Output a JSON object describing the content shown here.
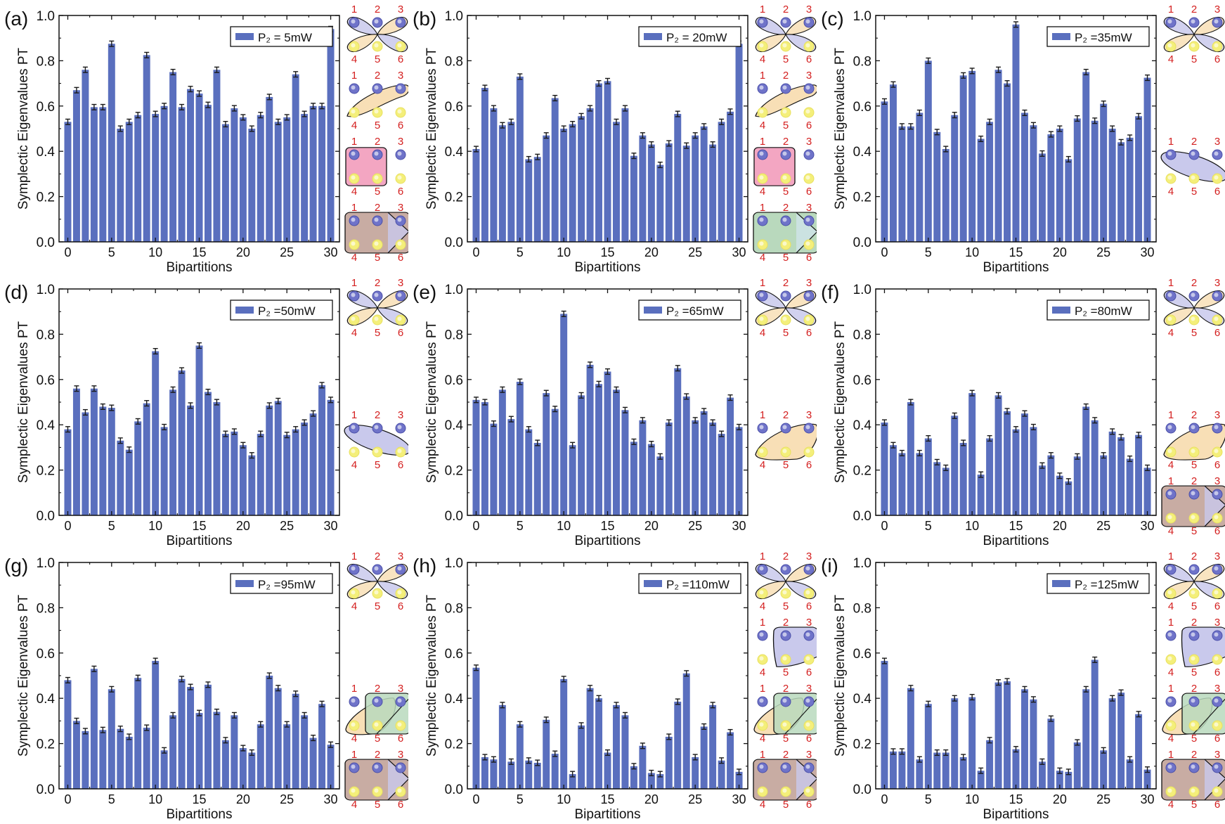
{
  "figure": {
    "node_labels": [
      "1",
      "2",
      "3",
      "4",
      "5",
      "6"
    ],
    "colors": {
      "bar": "#5a6fbe",
      "error": "#1a1a1a",
      "node_top": "#6f73c9",
      "node_bottom": "#f4ef7a",
      "label": "#d42020",
      "lavender": "#c9c9ec",
      "peach": "#f8dfb6",
      "green": "#b9d9bd",
      "pink": "#f3a6c2",
      "brown": "#c8aca3"
    }
  },
  "chart_data": [
    {
      "panel_label": "(a)",
      "type": "bar",
      "legend": "P₂ = 5mW",
      "xlabel": "Bipartitions",
      "ylabel": "Symplectic Eigenvalues PT",
      "ylim": [
        0,
        1.0
      ],
      "xlim": [
        -1,
        31
      ],
      "yticks": [
        "0.0",
        "0.2",
        "0.4",
        "0.6",
        "0.8",
        "1.0"
      ],
      "xticks": [
        "0",
        "5",
        "10",
        "15",
        "20",
        "25",
        "30"
      ],
      "legend_placement": "top-right",
      "error_bars": true,
      "x": [
        0,
        1,
        2,
        3,
        4,
        5,
        6,
        7,
        8,
        9,
        10,
        11,
        12,
        13,
        14,
        15,
        16,
        17,
        18,
        19,
        20,
        21,
        22,
        23,
        24,
        25,
        26,
        27,
        28,
        29,
        30
      ],
      "values": [
        0.53,
        0.67,
        0.76,
        0.595,
        0.595,
        0.875,
        0.5,
        0.53,
        0.56,
        0.825,
        0.565,
        0.6,
        0.75,
        0.595,
        0.675,
        0.655,
        0.605,
        0.76,
        0.52,
        0.59,
        0.55,
        0.5,
        0.56,
        0.64,
        0.53,
        0.55,
        0.74,
        0.565,
        0.6,
        0.6,
        0.94
      ],
      "diagrams": [
        "flower",
        "diag-peach",
        "square-pink",
        "big-brown"
      ]
    },
    {
      "panel_label": "(b)",
      "type": "bar",
      "legend": "P₂ = 20mW",
      "xlabel": "Bipartitions",
      "ylabel": "Symplectic Eigenvalues PT",
      "ylim": [
        0,
        1.0
      ],
      "xlim": [
        -1,
        31
      ],
      "yticks": [
        "0.0",
        "0.2",
        "0.4",
        "0.6",
        "0.8",
        "1.0"
      ],
      "xticks": [
        "0",
        "5",
        "10",
        "15",
        "20",
        "25",
        "30"
      ],
      "legend_placement": "top-right",
      "error_bars": true,
      "x": [
        0,
        1,
        2,
        3,
        4,
        5,
        6,
        7,
        8,
        9,
        10,
        11,
        12,
        13,
        14,
        15,
        16,
        17,
        18,
        19,
        20,
        21,
        22,
        23,
        24,
        25,
        26,
        27,
        28,
        29,
        30
      ],
      "values": [
        0.41,
        0.68,
        0.59,
        0.515,
        0.53,
        0.73,
        0.365,
        0.375,
        0.47,
        0.635,
        0.5,
        0.52,
        0.555,
        0.59,
        0.7,
        0.71,
        0.53,
        0.59,
        0.38,
        0.47,
        0.43,
        0.34,
        0.435,
        0.565,
        0.425,
        0.47,
        0.51,
        0.43,
        0.53,
        0.575,
        0.875
      ],
      "diagrams": [
        "flower",
        "diag-peach",
        "square-pink",
        "big-green"
      ]
    },
    {
      "panel_label": "(c)",
      "type": "bar",
      "legend": "P₂ =35mW",
      "xlabel": "Bipartitions",
      "ylabel": "Symplectic Eigenvalues PT",
      "ylim": [
        0,
        1.0
      ],
      "xlim": [
        -1,
        31
      ],
      "yticks": [
        "0.0",
        "0.2",
        "0.4",
        "0.6",
        "0.8",
        "1.0"
      ],
      "xticks": [
        "0",
        "5",
        "10",
        "15",
        "20",
        "25",
        "30"
      ],
      "legend_placement": "top-right",
      "error_bars": true,
      "x": [
        0,
        1,
        2,
        3,
        4,
        5,
        6,
        7,
        8,
        9,
        10,
        11,
        12,
        13,
        14,
        15,
        16,
        17,
        18,
        19,
        20,
        21,
        22,
        23,
        24,
        25,
        26,
        27,
        28,
        29,
        30
      ],
      "values": [
        0.62,
        0.695,
        0.51,
        0.51,
        0.57,
        0.8,
        0.485,
        0.41,
        0.56,
        0.735,
        0.755,
        0.455,
        0.53,
        0.76,
        0.7,
        0.96,
        0.57,
        0.515,
        0.39,
        0.475,
        0.5,
        0.365,
        0.545,
        0.75,
        0.535,
        0.61,
        0.5,
        0.44,
        0.46,
        0.555,
        0.725
      ],
      "diagrams": [
        "flower",
        null,
        "ellipse-lavender",
        null
      ]
    },
    {
      "panel_label": "(d)",
      "type": "bar",
      "legend": "P₂ =50mW",
      "xlabel": "Bipartitions",
      "ylabel": "Symplectic Eigenvalues PT",
      "ylim": [
        0,
        1.0
      ],
      "xlim": [
        -1,
        31
      ],
      "yticks": [
        "0.0",
        "0.2",
        "0.4",
        "0.6",
        "0.8",
        "1.0"
      ],
      "xticks": [
        "0",
        "5",
        "10",
        "15",
        "20",
        "25",
        "30"
      ],
      "legend_placement": "top-right",
      "error_bars": true,
      "x": [
        0,
        1,
        2,
        3,
        4,
        5,
        6,
        7,
        8,
        9,
        10,
        11,
        12,
        13,
        14,
        15,
        16,
        17,
        18,
        19,
        20,
        21,
        22,
        23,
        24,
        25,
        26,
        27,
        28,
        29,
        30
      ],
      "values": [
        0.38,
        0.56,
        0.455,
        0.56,
        0.48,
        0.475,
        0.33,
        0.29,
        0.415,
        0.495,
        0.725,
        0.39,
        0.555,
        0.64,
        0.485,
        0.75,
        0.545,
        0.5,
        0.36,
        0.37,
        0.31,
        0.265,
        0.36,
        0.485,
        0.505,
        0.355,
        0.38,
        0.41,
        0.45,
        0.575,
        0.51
      ],
      "diagrams": [
        "flower",
        null,
        "ellipse-lavender",
        null
      ]
    },
    {
      "panel_label": "(e)",
      "type": "bar",
      "legend": "P₂ =65mW",
      "xlabel": "Bipartitions",
      "ylabel": "Symplectic Eigenvalues PT",
      "ylim": [
        0,
        1.0
      ],
      "xlim": [
        -1,
        31
      ],
      "yticks": [
        "0.0",
        "0.2",
        "0.4",
        "0.6",
        "0.8",
        "1.0"
      ],
      "xticks": [
        "0",
        "5",
        "10",
        "15",
        "20",
        "25",
        "30"
      ],
      "legend_placement": "top-right",
      "error_bars": true,
      "x": [
        0,
        1,
        2,
        3,
        4,
        5,
        6,
        7,
        8,
        9,
        10,
        11,
        12,
        13,
        14,
        15,
        16,
        17,
        18,
        19,
        20,
        21,
        22,
        23,
        24,
        25,
        26,
        27,
        28,
        29,
        30
      ],
      "values": [
        0.51,
        0.5,
        0.405,
        0.555,
        0.425,
        0.59,
        0.38,
        0.32,
        0.54,
        0.47,
        0.89,
        0.31,
        0.53,
        0.665,
        0.58,
        0.635,
        0.555,
        0.465,
        0.325,
        0.42,
        0.315,
        0.26,
        0.41,
        0.65,
        0.525,
        0.42,
        0.46,
        0.41,
        0.36,
        0.52,
        0.39
      ],
      "diagrams": [
        "flower",
        null,
        "ellipse-peach",
        null
      ]
    },
    {
      "panel_label": "(f)",
      "type": "bar",
      "legend": "P₂ =80mW",
      "xlabel": "Bipartitions",
      "ylabel": "Symplectic Eigenvalues PT",
      "ylim": [
        0,
        1.0
      ],
      "xlim": [
        -1,
        31
      ],
      "yticks": [
        "0.0",
        "0.2",
        "0.4",
        "0.6",
        "0.8",
        "1.0"
      ],
      "xticks": [
        "0",
        "5",
        "10",
        "15",
        "20",
        "25",
        "30"
      ],
      "legend_placement": "top-right",
      "error_bars": true,
      "x": [
        0,
        1,
        2,
        3,
        4,
        5,
        6,
        7,
        8,
        9,
        10,
        11,
        12,
        13,
        14,
        15,
        16,
        17,
        18,
        19,
        20,
        21,
        22,
        23,
        24,
        25,
        26,
        27,
        28,
        29,
        30
      ],
      "values": [
        0.41,
        0.31,
        0.275,
        0.5,
        0.275,
        0.34,
        0.235,
        0.21,
        0.44,
        0.32,
        0.54,
        0.18,
        0.34,
        0.53,
        0.46,
        0.38,
        0.45,
        0.39,
        0.22,
        0.265,
        0.175,
        0.15,
        0.26,
        0.48,
        0.42,
        0.265,
        0.37,
        0.345,
        0.25,
        0.355,
        0.21
      ],
      "diagrams": [
        "flower",
        null,
        "ellipse-peach",
        "big-brown"
      ]
    },
    {
      "panel_label": "(g)",
      "type": "bar",
      "legend": "P₂ =95mW",
      "xlabel": "Bipartitions",
      "ylabel": "Symplectic Eigenvalues PT",
      "ylim": [
        0,
        1.0
      ],
      "xlim": [
        -1,
        31
      ],
      "yticks": [
        "0.0",
        "0.2",
        "0.4",
        "0.6",
        "0.8",
        "1.0"
      ],
      "xticks": [
        "0",
        "5",
        "10",
        "15",
        "20",
        "25",
        "30"
      ],
      "legend_placement": "top-right",
      "error_bars": true,
      "x": [
        0,
        1,
        2,
        3,
        4,
        5,
        6,
        7,
        8,
        9,
        10,
        11,
        12,
        13,
        14,
        15,
        16,
        17,
        18,
        19,
        20,
        21,
        22,
        23,
        24,
        25,
        26,
        27,
        28,
        29,
        30
      ],
      "values": [
        0.48,
        0.3,
        0.255,
        0.53,
        0.26,
        0.44,
        0.265,
        0.23,
        0.49,
        0.27,
        0.565,
        0.17,
        0.325,
        0.485,
        0.45,
        0.335,
        0.46,
        0.34,
        0.215,
        0.325,
        0.18,
        0.16,
        0.285,
        0.5,
        0.445,
        0.285,
        0.42,
        0.325,
        0.225,
        0.375,
        0.195
      ],
      "diagrams": [
        "flower",
        null,
        "peach-green",
        "big-brown"
      ]
    },
    {
      "panel_label": "(h)",
      "type": "bar",
      "legend": "P₂ =110mW",
      "xlabel": "Bipartitions",
      "ylabel": "Symplectic Eigenvalues PT",
      "ylim": [
        0,
        1.0
      ],
      "xlim": [
        -1,
        31
      ],
      "yticks": [
        "0.0",
        "0.2",
        "0.4",
        "0.6",
        "0.8",
        "1.0"
      ],
      "xticks": [
        "0",
        "5",
        "10",
        "15",
        "20",
        "25",
        "30"
      ],
      "legend_placement": "top-right",
      "error_bars": true,
      "x": [
        0,
        1,
        2,
        3,
        4,
        5,
        6,
        7,
        8,
        9,
        10,
        11,
        12,
        13,
        14,
        15,
        16,
        17,
        18,
        19,
        20,
        21,
        22,
        23,
        24,
        25,
        26,
        27,
        28,
        29,
        30
      ],
      "values": [
        0.535,
        0.14,
        0.13,
        0.37,
        0.12,
        0.285,
        0.125,
        0.115,
        0.305,
        0.155,
        0.485,
        0.065,
        0.28,
        0.445,
        0.4,
        0.16,
        0.37,
        0.325,
        0.1,
        0.19,
        0.07,
        0.065,
        0.23,
        0.385,
        0.51,
        0.14,
        0.275,
        0.37,
        0.125,
        0.25,
        0.075
      ],
      "diagrams": [
        "flower",
        "box-lavender",
        "peach-green",
        "big-brown"
      ]
    },
    {
      "panel_label": "(i)",
      "type": "bar",
      "legend": "P₂ =125mW",
      "xlabel": "Bipartitions",
      "ylabel": "Symplectic Eigenvalues PT",
      "ylim": [
        0,
        1.0
      ],
      "xlim": [
        -1,
        31
      ],
      "yticks": [
        "0.0",
        "0.2",
        "0.4",
        "0.6",
        "0.8",
        "1.0"
      ],
      "xticks": [
        "0",
        "5",
        "10",
        "15",
        "20",
        "25",
        "30"
      ],
      "legend_placement": "top-right",
      "error_bars": true,
      "x": [
        0,
        1,
        2,
        3,
        4,
        5,
        6,
        7,
        8,
        9,
        10,
        11,
        12,
        13,
        14,
        15,
        16,
        17,
        18,
        19,
        20,
        21,
        22,
        23,
        24,
        25,
        26,
        27,
        28,
        29,
        30
      ],
      "values": [
        0.565,
        0.165,
        0.165,
        0.445,
        0.13,
        0.375,
        0.16,
        0.16,
        0.4,
        0.14,
        0.405,
        0.08,
        0.215,
        0.47,
        0.475,
        0.175,
        0.44,
        0.395,
        0.12,
        0.31,
        0.08,
        0.075,
        0.205,
        0.44,
        0.57,
        0.17,
        0.4,
        0.425,
        0.13,
        0.33,
        0.085
      ],
      "diagrams": [
        "flower",
        "box-lavender",
        "peach-green",
        "big-brown"
      ]
    }
  ]
}
